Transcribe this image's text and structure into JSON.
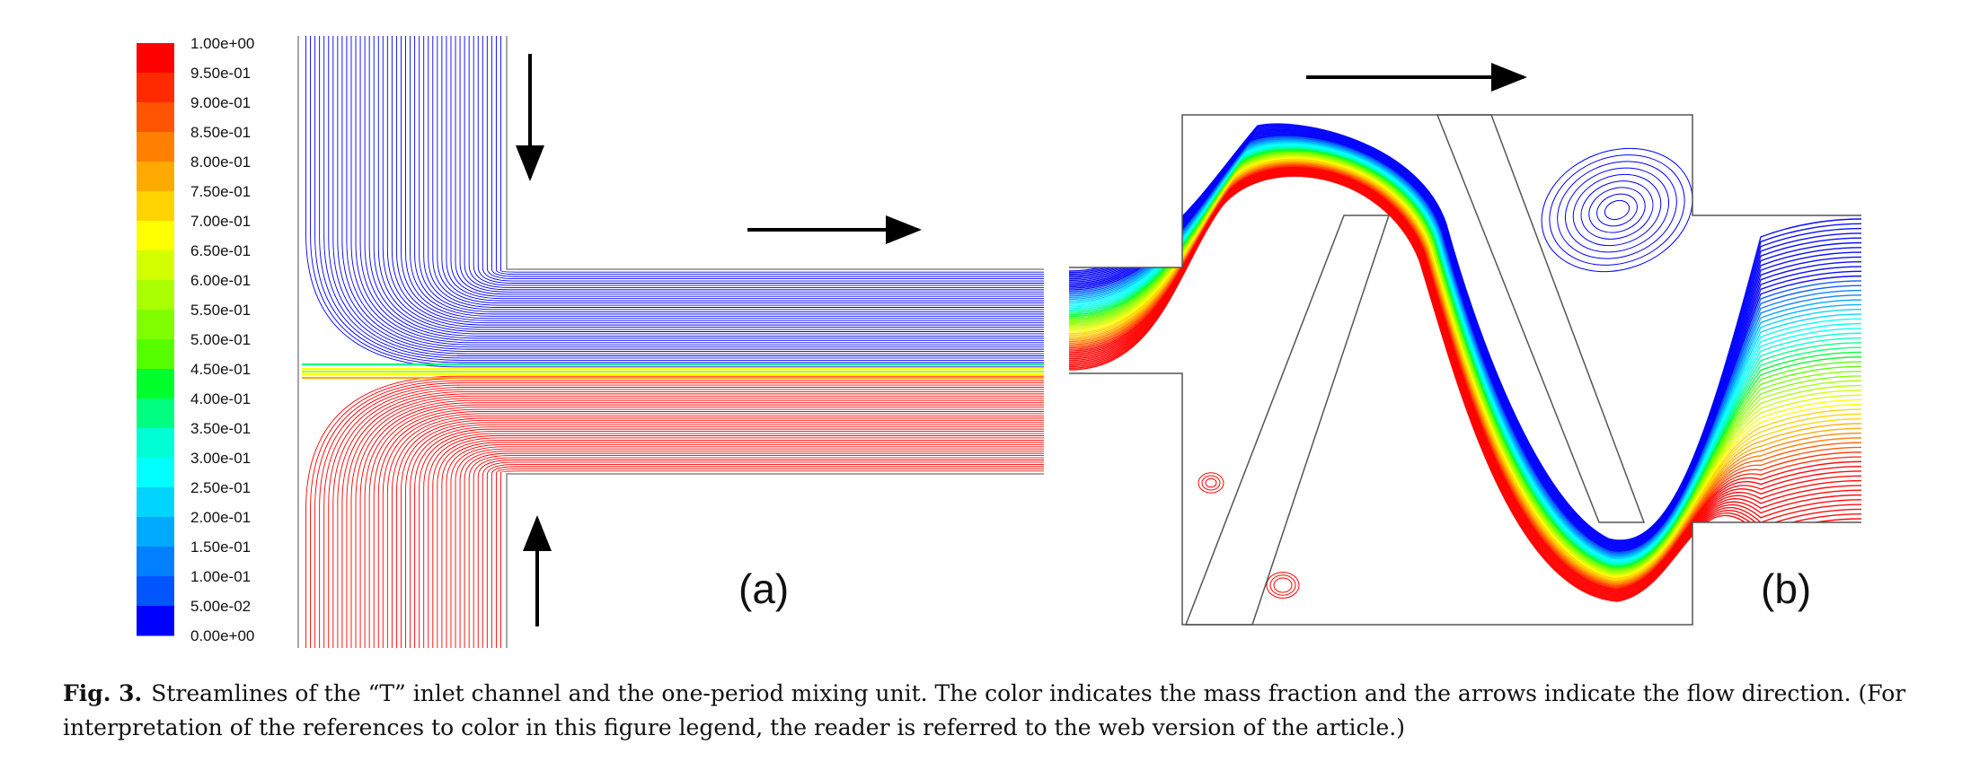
{
  "colorbar": {
    "labels": [
      "1.00e+00",
      "9.50e-01",
      "9.00e-01",
      "8.50e-01",
      "8.00e-01",
      "7.50e-01",
      "7.00e-01",
      "6.50e-01",
      "6.00e-01",
      "5.50e-01",
      "5.00e-01",
      "4.50e-01",
      "4.00e-01",
      "3.50e-01",
      "3.00e-01",
      "2.50e-01",
      "2.00e-01",
      "1.50e-01",
      "1.00e-01",
      "5.00e-02",
      "0.00e+00"
    ],
    "colors": [
      "#ff0000",
      "#ff2a00",
      "#ff5500",
      "#ff8000",
      "#ffaa00",
      "#ffd400",
      "#ffff00",
      "#d4ff00",
      "#aaff00",
      "#80ff00",
      "#55ff00",
      "#00ff2a",
      "#00ff80",
      "#00ffd4",
      "#00ffff",
      "#00d4ff",
      "#00aaff",
      "#0080ff",
      "#0055ff",
      "#0000ff"
    ]
  },
  "stream_colors": {
    "high": "#ff0000",
    "low": "#0000ff",
    "mixed": "#ffff00",
    "mid": "#00ff80"
  },
  "panels": [
    {
      "id": "a",
      "label": "(a)"
    },
    {
      "id": "b",
      "label": "(b)"
    }
  ],
  "caption": {
    "fig_number": "Fig. 3.",
    "text": "Streamlines of the “T” inlet channel and the one-period mixing unit. The color indicates the mass fraction and the arrows indicate the flow direction. (For interpretation of the references to color in this figure legend, the reader is referred to the web version of the article.)"
  }
}
